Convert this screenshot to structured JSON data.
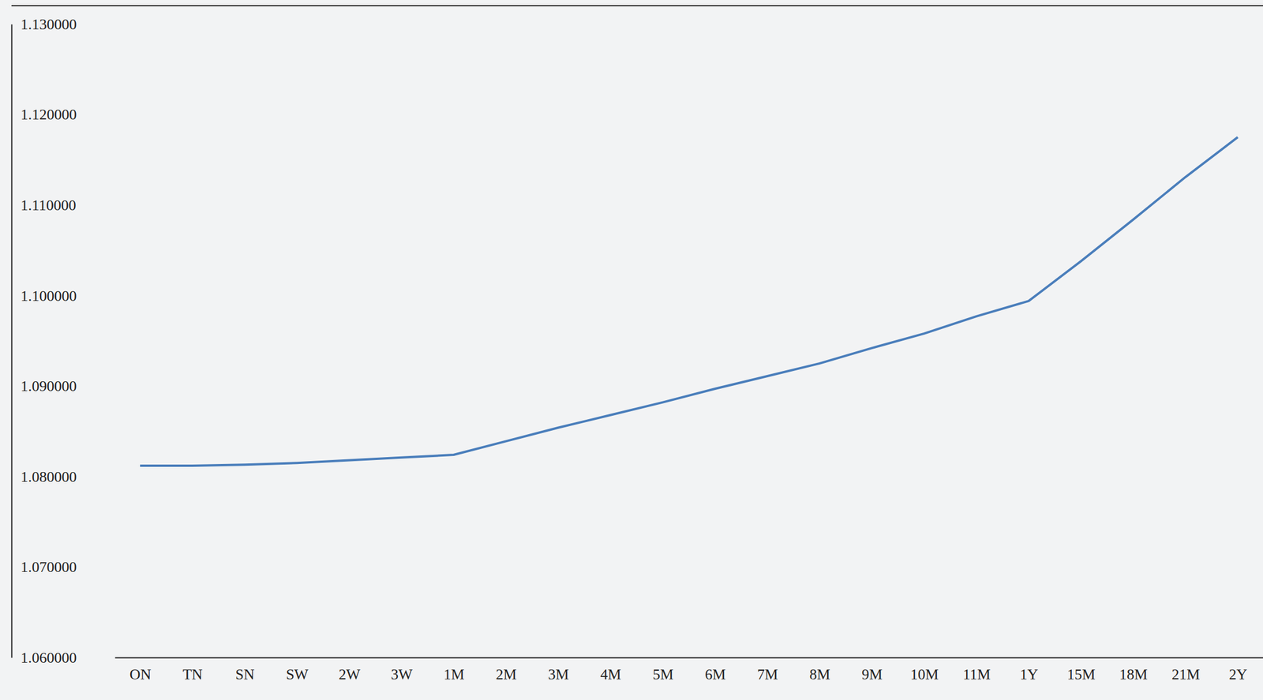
{
  "chart_data": {
    "type": "line",
    "categories": [
      "ON",
      "TN",
      "SN",
      "SW",
      "2W",
      "3W",
      "1M",
      "2M",
      "3M",
      "4M",
      "5M",
      "6M",
      "7M",
      "8M",
      "9M",
      "10M",
      "11M",
      "1Y",
      "15M",
      "18M",
      "21M",
      "2Y"
    ],
    "values": [
      1.0812,
      1.0812,
      1.0813,
      1.0815,
      1.0818,
      1.0821,
      1.0824,
      1.0839,
      1.0854,
      1.0868,
      1.0882,
      1.0897,
      1.0911,
      1.0925,
      1.0942,
      1.0958,
      1.0977,
      1.0994,
      1.1038,
      1.1084,
      1.1131,
      1.1175
    ],
    "color": "#4a7ebb",
    "ylim": [
      1.06,
      1.13
    ],
    "yticks": [
      {
        "value": 1.06,
        "label": "1.060000"
      },
      {
        "value": 1.07,
        "label": "1.070000"
      },
      {
        "value": 1.08,
        "label": "1.080000"
      },
      {
        "value": 1.09,
        "label": "1.090000"
      },
      {
        "value": 1.1,
        "label": "1.100000"
      },
      {
        "value": 1.11,
        "label": "1.110000"
      },
      {
        "value": 1.12,
        "label": "1.120000"
      },
      {
        "value": 1.13,
        "label": "1.130000"
      }
    ],
    "grid": false
  }
}
